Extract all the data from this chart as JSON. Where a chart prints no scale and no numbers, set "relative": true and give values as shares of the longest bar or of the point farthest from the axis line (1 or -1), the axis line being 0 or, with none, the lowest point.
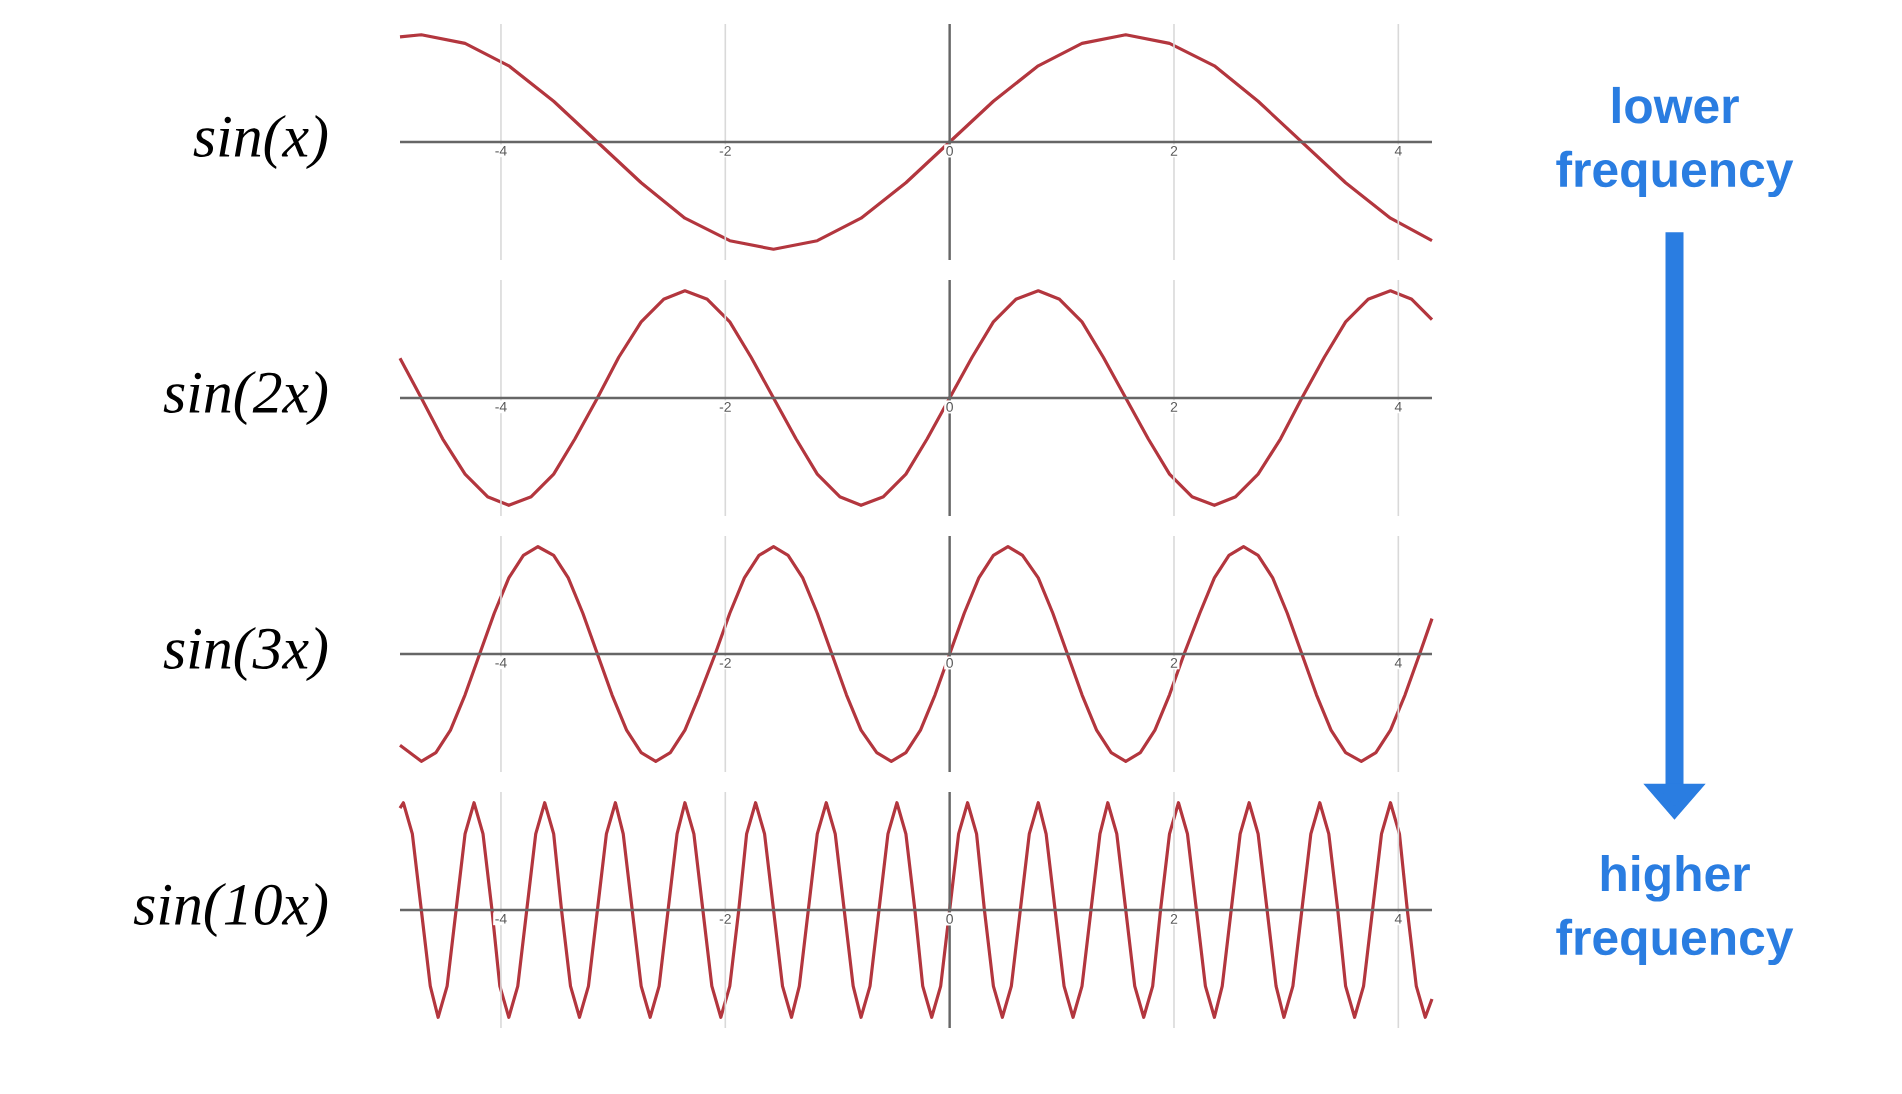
{
  "chart_data": [
    {
      "type": "line",
      "title": "sin(x)",
      "relative": true,
      "color": "#b3363e",
      "xlim": [
        -4.9,
        4.3
      ],
      "xticks": [
        -4,
        -2,
        0,
        2,
        4
      ],
      "grid": "x",
      "annotations": [
        "lower frequency"
      ],
      "x": [
        -4.9,
        -4.71,
        -4.32,
        -3.93,
        -3.53,
        -3.14,
        -2.75,
        -2.36,
        -1.96,
        -1.57,
        -1.18,
        -0.79,
        -0.39,
        0,
        0.39,
        0.79,
        1.18,
        1.57,
        1.96,
        2.36,
        2.75,
        3.14,
        3.53,
        3.93,
        4.3
      ],
      "values": [
        0.98,
        1,
        0.92,
        0.71,
        0.38,
        0,
        -0.38,
        -0.71,
        -0.92,
        -1,
        -0.92,
        -0.71,
        -0.38,
        0,
        0.38,
        0.71,
        0.92,
        1,
        0.92,
        0.71,
        0.38,
        0,
        -0.38,
        -0.71,
        -0.92
      ]
    },
    {
      "type": "line",
      "title": "sin(2x)",
      "relative": true,
      "color": "#b3363e",
      "xlim": [
        -4.9,
        4.3
      ],
      "xticks": [
        -4,
        -2,
        0,
        2,
        4
      ],
      "grid": "x",
      "x": [
        -4.9,
        -4.71,
        -4.52,
        -4.32,
        -4.12,
        -3.93,
        -3.73,
        -3.53,
        -3.34,
        -3.14,
        -2.95,
        -2.75,
        -2.55,
        -2.36,
        -2.16,
        -1.96,
        -1.77,
        -1.57,
        -1.37,
        -1.18,
        -0.98,
        -0.79,
        -0.59,
        -0.39,
        -0.2,
        0,
        0.2,
        0.39,
        0.59,
        0.79,
        0.98,
        1.18,
        1.37,
        1.57,
        1.77,
        1.96,
        2.16,
        2.36,
        2.55,
        2.75,
        2.95,
        3.14,
        3.34,
        3.53,
        3.73,
        3.93,
        4.12,
        4.3
      ],
      "values": [
        0.37,
        0,
        -0.38,
        -0.71,
        -0.92,
        -1,
        -0.92,
        -0.71,
        -0.38,
        0,
        0.38,
        0.71,
        0.92,
        1,
        0.92,
        0.71,
        0.38,
        0,
        -0.38,
        -0.71,
        -0.92,
        -1,
        -0.92,
        -0.71,
        -0.38,
        0,
        0.38,
        0.71,
        0.92,
        1,
        0.92,
        0.71,
        0.38,
        0,
        -0.38,
        -0.71,
        -0.92,
        -1,
        -0.92,
        -0.71,
        -0.38,
        0,
        0.38,
        0.71,
        0.92,
        1,
        0.92,
        0.73
      ]
    },
    {
      "type": "line",
      "title": "sin(3x)",
      "relative": true,
      "color": "#b3363e",
      "xlim": [
        -4.9,
        4.3
      ],
      "xticks": [
        -4,
        -2,
        0,
        2,
        4
      ],
      "grid": "x",
      "x": [
        -4.9,
        -4.71,
        -4.58,
        -4.45,
        -4.32,
        -4.19,
        -4.06,
        -3.93,
        -3.8,
        -3.67,
        -3.53,
        -3.4,
        -3.27,
        -3.14,
        -3.01,
        -2.88,
        -2.75,
        -2.62,
        -2.49,
        -2.36,
        -2.23,
        -2.09,
        -1.96,
        -1.83,
        -1.7,
        -1.57,
        -1.44,
        -1.31,
        -1.18,
        -1.05,
        -0.92,
        -0.79,
        -0.65,
        -0.52,
        -0.39,
        -0.26,
        -0.13,
        0,
        0.13,
        0.26,
        0.39,
        0.52,
        0.65,
        0.79,
        0.92,
        1.05,
        1.18,
        1.31,
        1.44,
        1.57,
        1.7,
        1.83,
        1.96,
        2.09,
        2.23,
        2.36,
        2.49,
        2.62,
        2.75,
        2.88,
        3.01,
        3.14,
        3.27,
        3.4,
        3.53,
        3.67,
        3.8,
        3.93,
        4.06,
        4.19,
        4.3
      ],
      "values": [
        -0.85,
        -1,
        -0.92,
        -0.71,
        -0.38,
        0,
        0.38,
        0.71,
        0.92,
        1,
        0.92,
        0.71,
        0.38,
        0,
        -0.38,
        -0.71,
        -0.92,
        -1,
        -0.92,
        -0.71,
        -0.38,
        0,
        0.38,
        0.71,
        0.92,
        1,
        0.92,
        0.71,
        0.38,
        0,
        -0.38,
        -0.71,
        -0.92,
        -1,
        -0.92,
        -0.71,
        -0.38,
        0,
        0.38,
        0.71,
        0.92,
        1,
        0.92,
        0.71,
        0.38,
        0,
        -0.38,
        -0.71,
        -0.92,
        -1,
        -0.92,
        -0.71,
        -0.38,
        0,
        0.38,
        0.71,
        0.92,
        1,
        0.92,
        0.71,
        0.38,
        0,
        -0.38,
        -0.71,
        -0.92,
        -1,
        -0.92,
        -0.71,
        -0.38,
        0,
        0.33
      ]
    },
    {
      "type": "line",
      "title": "sin(10x)",
      "relative": true,
      "color": "#b3363e",
      "xlim": [
        -4.9,
        4.3
      ],
      "xticks": [
        -4,
        -2,
        0,
        2,
        4
      ],
      "grid": "x",
      "annotations": [
        "higher frequency"
      ],
      "x": [
        -4.9,
        -4.87,
        -4.79,
        -4.71,
        -4.63,
        -4.56,
        -4.48,
        -4.4,
        -4.32,
        -4.24,
        -4.16,
        -4.08,
        -4.01,
        -3.93,
        -3.85,
        -3.77,
        -3.69,
        -3.61,
        -3.53,
        -3.46,
        -3.38,
        -3.3,
        -3.22,
        -3.14,
        -3.06,
        -2.98,
        -2.91,
        -2.83,
        -2.75,
        -2.67,
        -2.59,
        -2.51,
        -2.43,
        -2.36,
        -2.28,
        -2.2,
        -2.12,
        -2.04,
        -1.96,
        -1.88,
        -1.81,
        -1.73,
        -1.65,
        -1.57,
        -1.49,
        -1.41,
        -1.34,
        -1.26,
        -1.18,
        -1.1,
        -1.02,
        -0.94,
        -0.86,
        -0.79,
        -0.71,
        -0.63,
        -0.55,
        -0.47,
        -0.39,
        -0.31,
        -0.24,
        -0.16,
        -0.08,
        0,
        0.08,
        0.16,
        0.24,
        0.31,
        0.39,
        0.47,
        0.55,
        0.63,
        0.71,
        0.79,
        0.86,
        0.94,
        1.02,
        1.1,
        1.18,
        1.26,
        1.34,
        1.41,
        1.49,
        1.57,
        1.65,
        1.73,
        1.81,
        1.88,
        1.96,
        2.04,
        2.12,
        2.2,
        2.28,
        2.36,
        2.43,
        2.51,
        2.59,
        2.67,
        2.75,
        2.83,
        2.91,
        2.98,
        3.06,
        3.14,
        3.22,
        3.3,
        3.38,
        3.46,
        3.53,
        3.61,
        3.69,
        3.77,
        3.85,
        3.93,
        4.01,
        4.08,
        4.16,
        4.24,
        4.3
      ],
      "values": [
        0.95,
        1,
        0.71,
        0,
        -0.71,
        -1,
        -0.71,
        0,
        0.71,
        1,
        0.71,
        0,
        -0.71,
        -1,
        -0.71,
        0,
        0.71,
        1,
        0.71,
        0,
        -0.71,
        -1,
        -0.71,
        0,
        0.71,
        1,
        0.71,
        0,
        -0.71,
        -1,
        -0.71,
        0,
        0.71,
        1,
        0.71,
        0,
        -0.71,
        -1,
        -0.71,
        0,
        0.71,
        1,
        0.71,
        0,
        -0.71,
        -1,
        -0.71,
        0,
        0.71,
        1,
        0.71,
        0,
        -0.71,
        -1,
        -0.71,
        0,
        0.71,
        1,
        0.71,
        0,
        -0.71,
        -1,
        -0.71,
        0,
        0.71,
        1,
        0.71,
        0,
        -0.71,
        -1,
        -0.71,
        0,
        0.71,
        1,
        0.71,
        0,
        -0.71,
        -1,
        -0.71,
        0,
        0.71,
        1,
        0.71,
        0,
        -0.71,
        -1,
        -0.71,
        0,
        0.71,
        1,
        0.71,
        0,
        -0.71,
        -1,
        -0.71,
        0,
        0.71,
        1,
        0.71,
        0,
        -0.71,
        -1,
        -0.71,
        0,
        0.71,
        1,
        0.71,
        0,
        -0.71,
        -1,
        -0.71,
        0,
        0.71,
        1,
        0.71,
        0,
        -0.71,
        -1,
        -0.83
      ]
    }
  ]
}
